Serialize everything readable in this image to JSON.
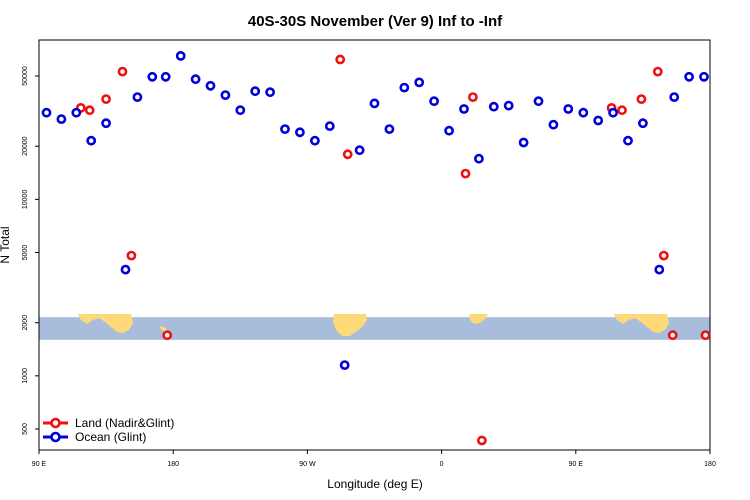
{
  "chart_data": {
    "type": "scatter",
    "title": "40S-30S November (Ver 9)   Inf to -Inf",
    "xlabel": "Longitude (deg E)",
    "ylabel": "N Total",
    "x_scale": "linear",
    "y_scale": "log",
    "xlim": [
      90,
      540
    ],
    "ylim": [
      380,
      80000
    ],
    "x_ticks": [
      {
        "value": 90,
        "label": "90 E"
      },
      {
        "value": 180,
        "label": "180"
      },
      {
        "value": 270,
        "label": "90 W"
      },
      {
        "value": 360,
        "label": "0"
      },
      {
        "value": 450,
        "label": "90 E"
      },
      {
        "value": 540,
        "label": "180"
      }
    ],
    "y_ticks": [
      {
        "value": 500,
        "label": "500"
      },
      {
        "value": 1000,
        "label": "1000"
      },
      {
        "value": 2000,
        "label": "2000"
      },
      {
        "value": 5000,
        "label": "5000"
      },
      {
        "value": 10000,
        "label": "10000"
      },
      {
        "value": 20000,
        "label": "20000"
      },
      {
        "value": 50000,
        "label": "50000"
      }
    ],
    "map_band": {
      "y_min": 1600,
      "y_max": 2150,
      "ocean_color": "#a8bcdb",
      "land_color": "#fdd97a"
    },
    "legend_position": "bottom-left",
    "series": [
      {
        "name": "Land (Nadir&Glint)",
        "color": "#ee1111",
        "x": [
          118,
          124,
          135,
          146,
          152,
          176,
          292,
          297,
          376,
          381,
          387,
          474,
          481,
          494,
          505,
          509,
          515,
          537
        ],
        "y": [
          33000,
          32000,
          37000,
          53000,
          4800,
          1700,
          62000,
          18000,
          14000,
          38000,
          430,
          33000,
          32000,
          37000,
          53000,
          4800,
          1700,
          1700
        ]
      },
      {
        "name": "Ocean (Glint)",
        "color": "#0000dd",
        "x": [
          95,
          105,
          115,
          125,
          135,
          148,
          156,
          166,
          175,
          185,
          195,
          205,
          215,
          225,
          235,
          245,
          255,
          265,
          275,
          285,
          295,
          305,
          315,
          325,
          335,
          345,
          355,
          365,
          375,
          385,
          395,
          405,
          415,
          425,
          435,
          445,
          455,
          465,
          475,
          485,
          495,
          506,
          516,
          526,
          536
        ],
        "y": [
          31000,
          28500,
          31000,
          21500,
          27000,
          4000,
          38000,
          49500,
          49500,
          65000,
          48000,
          44000,
          39000,
          32000,
          41000,
          40500,
          25000,
          24000,
          21500,
          26000,
          1150,
          19000,
          35000,
          25000,
          43000,
          46000,
          36000,
          24500,
          32500,
          17000,
          33500,
          34000,
          21000,
          36000,
          26500,
          32500,
          31000,
          28000,
          31000,
          21500,
          27000,
          4000,
          38000,
          49500,
          49500
        ]
      }
    ]
  }
}
